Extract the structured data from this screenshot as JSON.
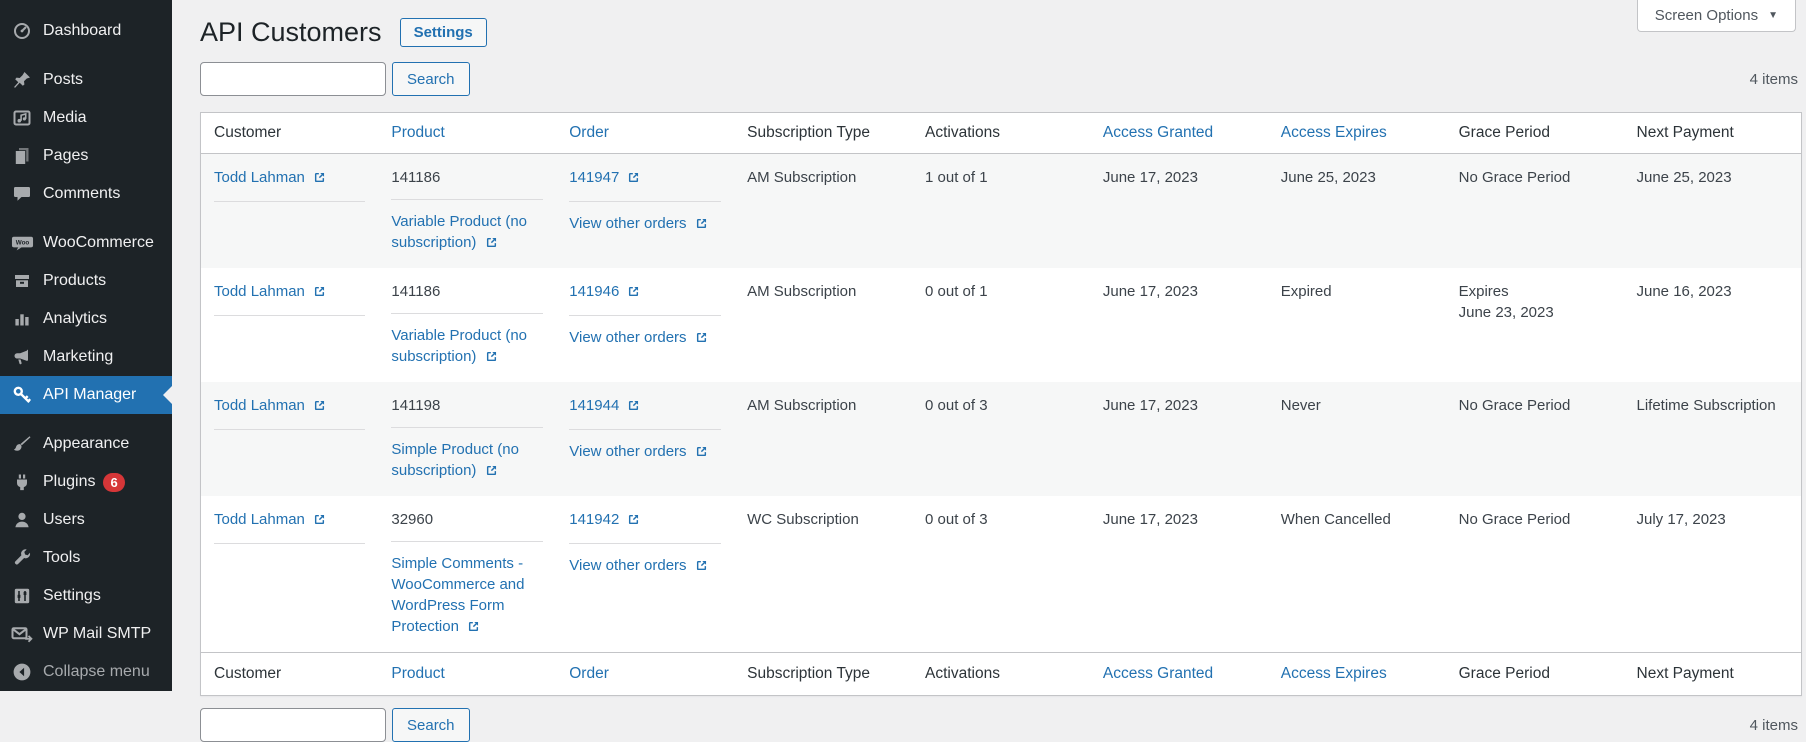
{
  "screen_options": {
    "label": "Screen Options"
  },
  "page": {
    "title": "API Customers",
    "settings_button": "Settings"
  },
  "search": {
    "button_label": "Search",
    "value": "",
    "placeholder": ""
  },
  "sidebar": {
    "items": [
      {
        "id": "dashboard",
        "label": "Dashboard",
        "icon": "dashboard-icon"
      },
      {
        "id": "posts",
        "label": "Posts",
        "icon": "posts-icon",
        "separator_before": true
      },
      {
        "id": "media",
        "label": "Media",
        "icon": "media-icon"
      },
      {
        "id": "pages",
        "label": "Pages",
        "icon": "pages-icon"
      },
      {
        "id": "comments",
        "label": "Comments",
        "icon": "comments-icon"
      },
      {
        "id": "woocommerce",
        "label": "WooCommerce",
        "icon": "woocommerce-icon",
        "separator_before": true
      },
      {
        "id": "products",
        "label": "Products",
        "icon": "products-icon"
      },
      {
        "id": "analytics",
        "label": "Analytics",
        "icon": "analytics-icon"
      },
      {
        "id": "marketing",
        "label": "Marketing",
        "icon": "marketing-icon"
      },
      {
        "id": "api-manager",
        "label": "API Manager",
        "icon": "key-icon",
        "active": true
      },
      {
        "id": "appearance",
        "label": "Appearance",
        "icon": "appearance-icon",
        "separator_before": true
      },
      {
        "id": "plugins",
        "label": "Plugins",
        "icon": "plugins-icon",
        "badge": "6"
      },
      {
        "id": "users",
        "label": "Users",
        "icon": "users-icon"
      },
      {
        "id": "tools",
        "label": "Tools",
        "icon": "tools-icon"
      },
      {
        "id": "settings",
        "label": "Settings",
        "icon": "settings-icon"
      },
      {
        "id": "wp-mail-smtp",
        "label": "WP Mail SMTP",
        "icon": "mail-icon"
      },
      {
        "id": "collapse-menu",
        "label": "Collapse menu",
        "icon": "collapse-icon",
        "collapse": true
      }
    ]
  },
  "table": {
    "items_count": "4 items",
    "columns": [
      {
        "label": "Customer",
        "sortable": false
      },
      {
        "label": "Product",
        "sortable": true
      },
      {
        "label": "Order",
        "sortable": true
      },
      {
        "label": "Subscription Type",
        "sortable": false
      },
      {
        "label": "Activations",
        "sortable": false
      },
      {
        "label": "Access Granted",
        "sortable": true
      },
      {
        "label": "Access Expires",
        "sortable": true
      },
      {
        "label": "Grace Period",
        "sortable": false
      },
      {
        "label": "Next Payment",
        "sortable": false
      }
    ],
    "rows": [
      {
        "customer": "Todd Lahman",
        "product_id": "141186",
        "product_name": "Variable Product (no subscription)",
        "order_id": "141947",
        "order_view_label": "View other orders",
        "subscription_type": "AM Subscription",
        "activations": "1 out of 1",
        "access_granted": "June 17, 2023",
        "access_expires": "June 25, 2023",
        "grace_period": [
          "No Grace Period"
        ],
        "next_payment": "June 25, 2023"
      },
      {
        "customer": "Todd Lahman",
        "product_id": "141186",
        "product_name": "Variable Product (no subscription)",
        "order_id": "141946",
        "order_view_label": "View other orders",
        "subscription_type": "AM Subscription",
        "activations": "0 out of 1",
        "access_granted": "June 17, 2023",
        "access_expires": "Expired",
        "grace_period": [
          "Expires",
          "June 23, 2023"
        ],
        "next_payment": "June 16, 2023"
      },
      {
        "customer": "Todd Lahman",
        "product_id": "141198",
        "product_name": "Simple Product (no subscription)",
        "order_id": "141944",
        "order_view_label": "View other orders",
        "subscription_type": "AM Subscription",
        "activations": "0 out of 3",
        "access_granted": "June 17, 2023",
        "access_expires": "Never",
        "grace_period": [
          "No Grace Period"
        ],
        "next_payment": "Lifetime Subscription"
      },
      {
        "customer": "Todd Lahman",
        "product_id": "32960",
        "product_name": "Simple Comments - WooCommerce and WordPress Form Protection",
        "order_id": "141942",
        "order_view_label": "View other orders",
        "subscription_type": "WC Subscription",
        "activations": "0 out of 3",
        "access_granted": "June 17, 2023",
        "access_expires": "When Cancelled",
        "grace_period": [
          "No Grace Period"
        ],
        "next_payment": "July 17, 2023"
      }
    ]
  },
  "colors": {
    "accent": "#2271b1",
    "sidebar_bg": "#1d2327",
    "badge": "#d63638",
    "page_bg": "#f0f0f1",
    "row_stripe": "#f6f7f7",
    "table_border": "#c3c4c7"
  }
}
